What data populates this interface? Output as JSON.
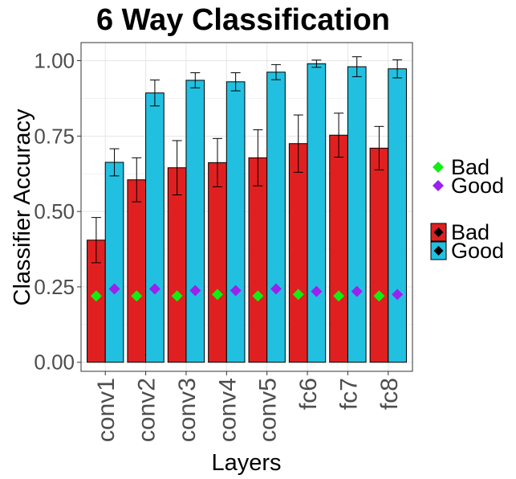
{
  "chart_data": {
    "type": "bar",
    "title": "6 Way Classification",
    "xlabel": "Layers",
    "ylabel": "Classifier Accuracy",
    "ylim": [
      -0.03,
      1.06
    ],
    "yticks": [
      "0.00",
      "0.25",
      "0.50",
      "0.75",
      "1.00"
    ],
    "ytick_values": [
      0,
      0.25,
      0.5,
      0.75,
      1.0
    ],
    "categories": [
      "conv1",
      "conv2",
      "conv3",
      "conv4",
      "conv5",
      "fc6",
      "fc7",
      "fc8"
    ],
    "series": [
      {
        "name": "Bad",
        "color": "#e02020",
        "values": [
          0.405,
          0.605,
          0.645,
          0.662,
          0.678,
          0.725,
          0.753,
          0.71
        ],
        "errors": [
          0.075,
          0.073,
          0.09,
          0.08,
          0.093,
          0.095,
          0.073,
          0.072
        ],
        "chance_values": [
          0.22,
          0.22,
          0.22,
          0.225,
          0.22,
          0.225,
          0.22,
          0.22
        ],
        "chance_color": "#11ee11"
      },
      {
        "name": "Good",
        "color": "#22c0e0",
        "values": [
          0.663,
          0.893,
          0.935,
          0.93,
          0.962,
          0.99,
          0.98,
          0.973
        ],
        "errors": [
          0.045,
          0.043,
          0.025,
          0.03,
          0.025,
          0.012,
          0.033,
          0.03
        ],
        "chance_values": [
          0.243,
          0.243,
          0.238,
          0.238,
          0.243,
          0.235,
          0.235,
          0.225
        ],
        "chance_color": "#9922ee"
      }
    ],
    "legend_points": [
      "Bad",
      "Good"
    ],
    "legend_bars": [
      "Bad",
      "Good"
    ],
    "legend_position": "right",
    "grid": true
  }
}
